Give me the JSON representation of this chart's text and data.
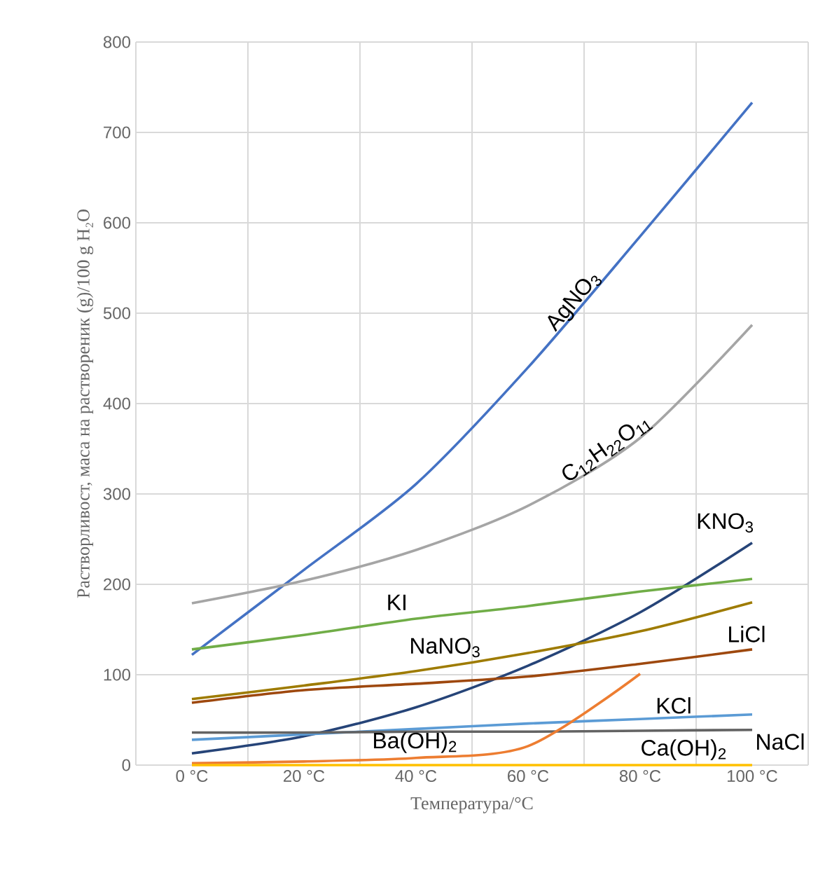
{
  "chart_data": {
    "type": "line",
    "xlabel": "Температура/°C",
    "ylabel": "Растворливост, маса на раствореник (g)/100 g H₂O",
    "categories": [
      "0 °C",
      "20 °C",
      "40 °C",
      "60 °C",
      "80 °C",
      "100 °C"
    ],
    "ylim": [
      0,
      800
    ],
    "yticks": [
      0,
      100,
      200,
      300,
      400,
      500,
      600,
      700,
      800
    ],
    "grid": true,
    "legend": false,
    "marker": "none",
    "line_style": "solid",
    "series": [
      {
        "name": "AgNO$_{3}$",
        "color": "#4472c4",
        "values": [
          122,
          216,
          311,
          440,
          585,
          733
        ]
      },
      {
        "name": "C$_{12}$H$_{22}$O$_{11}$",
        "color": "#a5a5a5",
        "values": [
          179,
          204,
          238,
          287,
          362,
          487
        ]
      },
      {
        "name": "KNO$_{3}$",
        "color": "#264478",
        "values": [
          13,
          32,
          64,
          110,
          169,
          246
        ]
      },
      {
        "name": "KI",
        "color": "#70ad47",
        "values": [
          128,
          144,
          162,
          176,
          192,
          206
        ]
      },
      {
        "name": "NaNO$_{3}$",
        "color": "#9e7b00",
        "values": [
          73,
          88,
          104,
          124,
          148,
          180
        ]
      },
      {
        "name": "LiCl",
        "color": "#9e480e",
        "values": [
          69,
          83,
          90,
          98,
          112,
          128
        ]
      },
      {
        "name": "KCl",
        "color": "#5b9bd5",
        "values": [
          28,
          34,
          40,
          46,
          51,
          56
        ]
      },
      {
        "name": "NaCl",
        "color": "#636363",
        "values": [
          36,
          36,
          37,
          37,
          38,
          39
        ]
      },
      {
        "name": "Ba(OH)$_{2}$",
        "color": "#ed7d31",
        "values": [
          2,
          4,
          8,
          21,
          101,
          null
        ]
      },
      {
        "name": "Ca(OH)$_{2}$",
        "color": "#ffc000",
        "values": [
          0,
          0,
          0,
          0,
          0,
          0
        ]
      }
    ]
  }
}
